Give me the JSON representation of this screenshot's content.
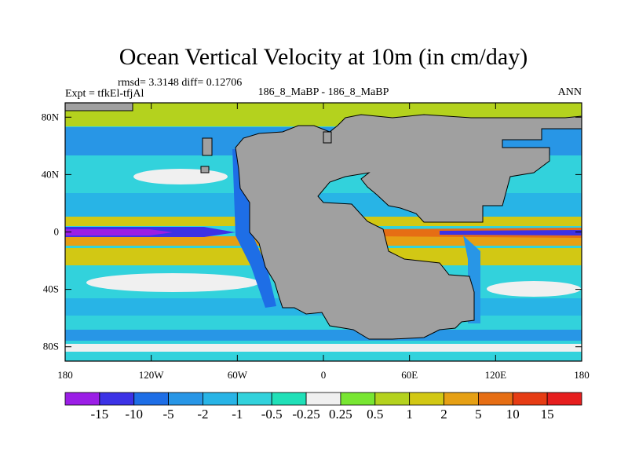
{
  "chart_data": {
    "type": "heatmap",
    "title": "Ocean Vertical Velocity at 10m (in cm/day)",
    "stats": "rmsd= 3.3148 diff= 0.12706",
    "left_label": "Expt = tfkEl-tfjAl",
    "center_label": "186_8_MaBP - 186_8_MaBP",
    "right_label": "ANN",
    "x_ticks": [
      "180",
      "120W",
      "60W",
      "0",
      "60E",
      "120E",
      "180"
    ],
    "y_ticks": [
      "80N",
      "40N",
      "0",
      "40S",
      "80S"
    ],
    "xlim": [
      -180,
      180
    ],
    "ylim": [
      -90,
      90
    ],
    "land_color": "#a0a0a0",
    "colorbar": {
      "labels": [
        "-15",
        "-10",
        "-5",
        "-2",
        "-1",
        "-0.5",
        "-0.25",
        "0.25",
        "0.5",
        "1",
        "2",
        "5",
        "10",
        "15"
      ],
      "colors": [
        "#9b1ee6",
        "#3c32e6",
        "#1e6ee6",
        "#2896e6",
        "#28b4e6",
        "#32d2dc",
        "#20e0b8",
        "#f0f0f0",
        "#78e632",
        "#b4d21e",
        "#d2c814",
        "#e6a014",
        "#e66e14",
        "#e63c14",
        "#e61e1e"
      ]
    }
  }
}
